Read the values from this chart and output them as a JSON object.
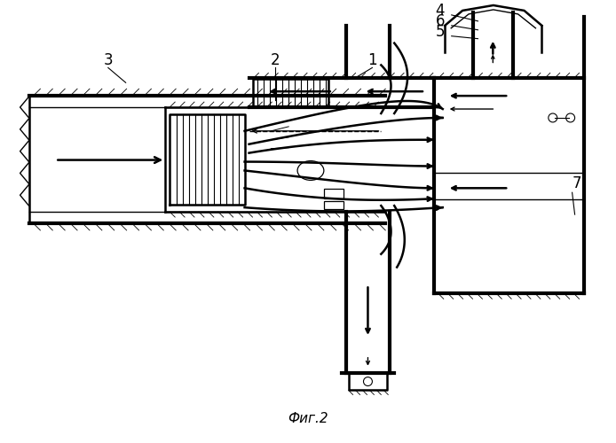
{
  "title": "Фиг.2",
  "background": "#ffffff",
  "line_color": "#000000",
  "fig_width": 6.94,
  "fig_height": 5.0,
  "dpi": 100
}
